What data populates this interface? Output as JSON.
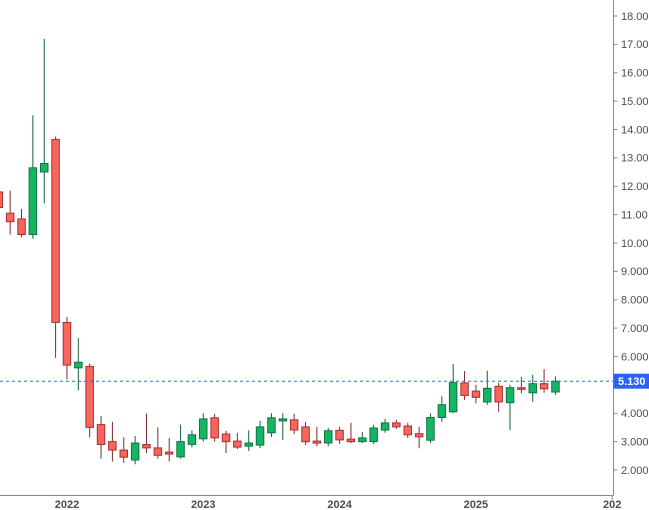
{
  "chart_data": {
    "type": "candlestick",
    "timeframe": "monthly",
    "title": "",
    "current_price": {
      "label": "5.130",
      "value": 5.13
    },
    "y_axis": {
      "side": "right",
      "min_visible": 1.55,
      "max_visible": 18.55,
      "ticks": [
        {
          "label": "18.00",
          "value": 18
        },
        {
          "label": "17.00",
          "value": 17
        },
        {
          "label": "16.00",
          "value": 16
        },
        {
          "label": "15.00",
          "value": 15
        },
        {
          "label": "14.00",
          "value": 14
        },
        {
          "label": "13.00",
          "value": 13
        },
        {
          "label": "12.00",
          "value": 12
        },
        {
          "label": "11.00",
          "value": 11
        },
        {
          "label": "10.00",
          "value": 10
        },
        {
          "label": "9.000",
          "value": 9
        },
        {
          "label": "8.000",
          "value": 8
        },
        {
          "label": "7.000",
          "value": 7
        },
        {
          "label": "6.000",
          "value": 6
        },
        {
          "label": "4.000",
          "value": 4
        },
        {
          "label": "3.000",
          "value": 3
        },
        {
          "label": "2.000",
          "value": 2
        }
      ]
    },
    "x_axis": {
      "side": "bottom",
      "ticks": [
        {
          "label": "2022",
          "month_index": 6,
          "edge_tick": false
        },
        {
          "label": "2023",
          "month_index": 18,
          "edge_tick": false
        },
        {
          "label": "2024",
          "month_index": 30,
          "edge_tick": false
        },
        {
          "label": "2025",
          "month_index": 42,
          "edge_tick": false
        },
        {
          "label": "202",
          "month_index": 54,
          "edge_tick": true
        }
      ]
    },
    "candles": [
      {
        "t": "2021-07",
        "o": 11.8,
        "h": 11.85,
        "l": 11.0,
        "c": 11.25
      },
      {
        "t": "2021-08",
        "o": 11.05,
        "h": 11.85,
        "l": 10.3,
        "c": 10.75
      },
      {
        "t": "2021-09",
        "o": 10.85,
        "h": 11.2,
        "l": 10.2,
        "c": 10.3
      },
      {
        "t": "2021-10",
        "o": 10.3,
        "h": 14.5,
        "l": 10.15,
        "c": 12.65
      },
      {
        "t": "2021-11",
        "o": 12.5,
        "h": 17.2,
        "l": 11.4,
        "c": 12.8
      },
      {
        "t": "2021-12",
        "o": 13.65,
        "h": 13.75,
        "l": 5.95,
        "c": 7.2
      },
      {
        "t": "2022-01",
        "o": 7.2,
        "h": 7.4,
        "l": 5.2,
        "c": 5.7
      },
      {
        "t": "2022-02",
        "o": 5.6,
        "h": 6.65,
        "l": 4.8,
        "c": 5.8
      },
      {
        "t": "2022-03",
        "o": 5.65,
        "h": 5.75,
        "l": 3.15,
        "c": 3.5
      },
      {
        "t": "2022-04",
        "o": 3.6,
        "h": 3.9,
        "l": 2.4,
        "c": 2.9
      },
      {
        "t": "2022-05",
        "o": 3.0,
        "h": 3.7,
        "l": 2.3,
        "c": 2.7
      },
      {
        "t": "2022-06",
        "o": 2.7,
        "h": 3.15,
        "l": 2.25,
        "c": 2.45
      },
      {
        "t": "2022-07",
        "o": 2.35,
        "h": 3.2,
        "l": 2.2,
        "c": 2.95
      },
      {
        "t": "2022-08",
        "o": 2.9,
        "h": 4.0,
        "l": 2.6,
        "c": 2.78
      },
      {
        "t": "2022-09",
        "o": 2.78,
        "h": 3.5,
        "l": 2.4,
        "c": 2.52
      },
      {
        "t": "2022-10",
        "o": 2.63,
        "h": 3.13,
        "l": 2.3,
        "c": 2.56
      },
      {
        "t": "2022-11",
        "o": 2.46,
        "h": 3.6,
        "l": 2.4,
        "c": 3.0
      },
      {
        "t": "2022-12",
        "o": 2.9,
        "h": 3.4,
        "l": 2.8,
        "c": 3.24
      },
      {
        "t": "2023-01",
        "o": 3.1,
        "h": 4.0,
        "l": 3.0,
        "c": 3.8
      },
      {
        "t": "2023-02",
        "o": 3.84,
        "h": 3.98,
        "l": 3.0,
        "c": 3.13
      },
      {
        "t": "2023-03",
        "o": 3.27,
        "h": 3.38,
        "l": 2.6,
        "c": 3.0
      },
      {
        "t": "2023-04",
        "o": 3.02,
        "h": 3.3,
        "l": 2.74,
        "c": 2.81
      },
      {
        "t": "2023-05",
        "o": 2.84,
        "h": 3.4,
        "l": 2.67,
        "c": 2.95
      },
      {
        "t": "2023-06",
        "o": 2.88,
        "h": 3.73,
        "l": 2.77,
        "c": 3.52
      },
      {
        "t": "2023-07",
        "o": 3.31,
        "h": 4.0,
        "l": 3.16,
        "c": 3.84
      },
      {
        "t": "2023-08",
        "o": 3.73,
        "h": 4.0,
        "l": 3.06,
        "c": 3.8
      },
      {
        "t": "2023-09",
        "o": 3.77,
        "h": 3.98,
        "l": 3.27,
        "c": 3.41
      },
      {
        "t": "2023-10",
        "o": 3.52,
        "h": 3.69,
        "l": 2.88,
        "c": 3.0
      },
      {
        "t": "2023-11",
        "o": 3.02,
        "h": 3.52,
        "l": 2.84,
        "c": 2.95
      },
      {
        "t": "2023-12",
        "o": 2.95,
        "h": 3.48,
        "l": 2.84,
        "c": 3.38
      },
      {
        "t": "2024-01",
        "o": 3.4,
        "h": 3.52,
        "l": 2.92,
        "c": 3.06
      },
      {
        "t": "2024-02",
        "o": 3.09,
        "h": 3.66,
        "l": 2.95,
        "c": 3.0
      },
      {
        "t": "2024-03",
        "o": 3.0,
        "h": 3.34,
        "l": 2.95,
        "c": 3.13
      },
      {
        "t": "2024-04",
        "o": 3.0,
        "h": 3.59,
        "l": 2.91,
        "c": 3.48
      },
      {
        "t": "2024-05",
        "o": 3.41,
        "h": 3.8,
        "l": 3.31,
        "c": 3.66
      },
      {
        "t": "2024-06",
        "o": 3.66,
        "h": 3.77,
        "l": 3.45,
        "c": 3.52
      },
      {
        "t": "2024-07",
        "o": 3.55,
        "h": 3.66,
        "l": 3.13,
        "c": 3.24
      },
      {
        "t": "2024-08",
        "o": 3.28,
        "h": 3.52,
        "l": 2.77,
        "c": 3.17
      },
      {
        "t": "2024-09",
        "o": 3.05,
        "h": 4.0,
        "l": 2.95,
        "c": 3.85
      },
      {
        "t": "2024-10",
        "o": 3.85,
        "h": 4.6,
        "l": 3.7,
        "c": 4.3
      },
      {
        "t": "2024-11",
        "o": 4.05,
        "h": 5.74,
        "l": 4.0,
        "c": 5.08
      },
      {
        "t": "2024-12",
        "o": 5.07,
        "h": 5.49,
        "l": 4.47,
        "c": 4.63
      },
      {
        "t": "2025-01",
        "o": 4.78,
        "h": 5.0,
        "l": 4.35,
        "c": 4.56
      },
      {
        "t": "2025-02",
        "o": 4.4,
        "h": 5.5,
        "l": 4.3,
        "c": 4.88
      },
      {
        "t": "2025-03",
        "o": 4.95,
        "h": 5.07,
        "l": 4.05,
        "c": 4.4
      },
      {
        "t": "2025-04",
        "o": 4.37,
        "h": 5.0,
        "l": 3.41,
        "c": 4.9
      },
      {
        "t": "2025-05",
        "o": 4.9,
        "h": 5.28,
        "l": 4.7,
        "c": 4.84
      },
      {
        "t": "2025-06",
        "o": 4.72,
        "h": 5.35,
        "l": 4.4,
        "c": 5.04
      },
      {
        "t": "2025-07",
        "o": 5.04,
        "h": 5.56,
        "l": 4.72,
        "c": 4.86
      },
      {
        "t": "2025-08",
        "o": 4.75,
        "h": 5.3,
        "l": 4.65,
        "c": 5.13
      }
    ],
    "price_line": {
      "style": "dashed",
      "value": 5.13
    },
    "legend_position": "none",
    "grid": "off"
  },
  "colors": {
    "background": "#ffffff",
    "up_fill": "#16b564",
    "up_border": "#0e7544",
    "up_wick": "#155f40",
    "down_fill": "#f7665a",
    "down_border": "#a82f34",
    "down_wick": "#7e2a2e",
    "price_line_blue": "#2962ff",
    "badge_bg": "#2962ff",
    "badge_text": "#ffffff",
    "axis_line": "#8a8a8d",
    "axis_text": "#4a4c50"
  }
}
